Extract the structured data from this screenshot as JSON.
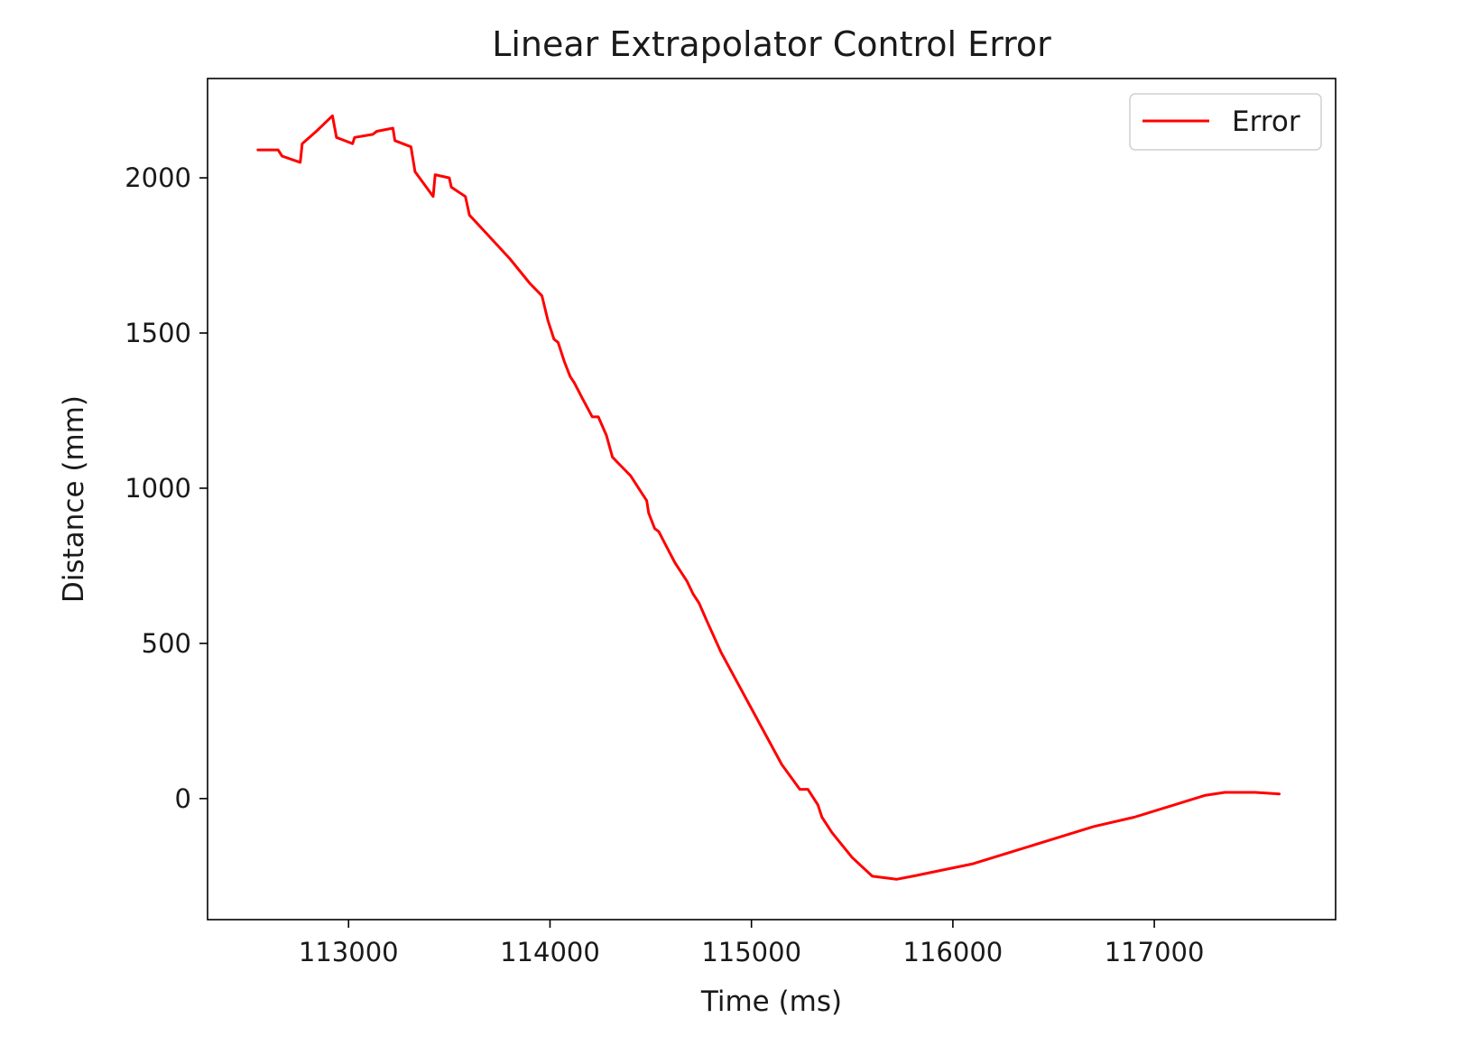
{
  "chart_data": {
    "type": "line",
    "title": "Linear Extrapolator Control Error",
    "xlabel": "Time (ms)",
    "ylabel": "Distance (mm)",
    "xlim": [
      112300,
      117900
    ],
    "ylim": [
      -390,
      2320
    ],
    "xticks": [
      113000,
      114000,
      115000,
      116000,
      117000
    ],
    "xtick_labels": [
      "113000",
      "114000",
      "115000",
      "116000",
      "117000"
    ],
    "yticks": [
      0,
      500,
      1000,
      1500,
      2000
    ],
    "ytick_labels": [
      "0",
      "500",
      "1000",
      "1500",
      "2000"
    ],
    "grid": false,
    "legend": {
      "position": "top-right"
    },
    "series": [
      {
        "name": "Error",
        "color": "#ff0000",
        "x": [
          112550,
          112650,
          112670,
          112760,
          112770,
          112840,
          112920,
          112940,
          113020,
          113030,
          113120,
          113140,
          113220,
          113230,
          113310,
          113330,
          113420,
          113430,
          113500,
          113510,
          113580,
          113600,
          113700,
          113800,
          113900,
          113960,
          113990,
          114020,
          114040,
          114070,
          114100,
          114120,
          114160,
          114210,
          114240,
          114280,
          114310,
          114340,
          114400,
          114450,
          114480,
          114490,
          114520,
          114540,
          114580,
          114620,
          114650,
          114680,
          114710,
          114740,
          114760,
          114780,
          114850,
          115000,
          115150,
          115240,
          115280,
          115330,
          115350,
          115400,
          115500,
          115600,
          115720,
          115800,
          115950,
          116100,
          116300,
          116500,
          116700,
          116900,
          117100,
          117250,
          117350,
          117500,
          117620
        ],
        "y": [
          2090,
          2090,
          2070,
          2050,
          2110,
          2150,
          2200,
          2130,
          2110,
          2130,
          2140,
          2150,
          2160,
          2120,
          2100,
          2020,
          1940,
          2010,
          2000,
          1970,
          1940,
          1880,
          1810,
          1740,
          1660,
          1620,
          1540,
          1480,
          1470,
          1410,
          1360,
          1340,
          1290,
          1230,
          1230,
          1170,
          1100,
          1080,
          1040,
          990,
          960,
          920,
          870,
          860,
          810,
          760,
          730,
          700,
          660,
          630,
          600,
          570,
          470,
          290,
          110,
          30,
          30,
          -20,
          -60,
          -110,
          -190,
          -250,
          -260,
          -250,
          -230,
          -210,
          -170,
          -130,
          -90,
          -60,
          -20,
          10,
          20,
          20,
          15
        ]
      }
    ]
  }
}
